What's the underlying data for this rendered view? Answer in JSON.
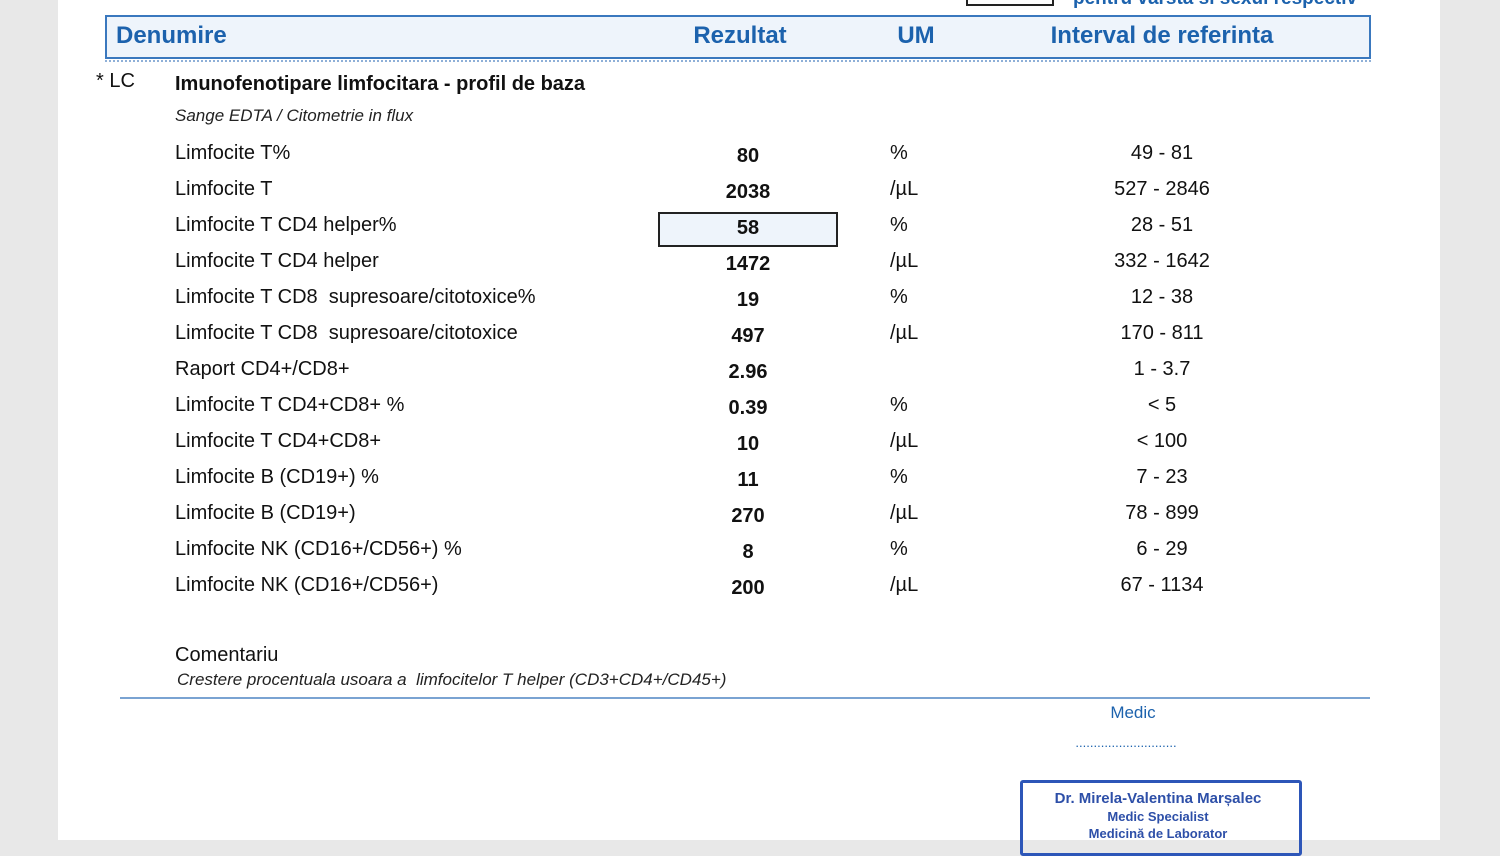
{
  "header": {
    "note": "pentru varsta si sexul respectiv",
    "columns": [
      "Denumire",
      "Rezultat",
      "UM",
      "Interval de referinta"
    ]
  },
  "section": {
    "code": "* LC",
    "title": "Imunofenotipare limfocitara - profil de baza",
    "method": "Sange EDTA / Citometrie in flux"
  },
  "table": {
    "rows": [
      [
        "Limfocite T%",
        "80",
        "%",
        "49 - 81"
      ],
      [
        "Limfocite T",
        "2038",
        "/µL",
        "527 - 2846"
      ],
      [
        "Limfocite T CD4 helper%",
        "58",
        "%",
        "28 - 51"
      ],
      [
        "Limfocite T CD4 helper",
        "1472",
        "/µL",
        "332 - 1642"
      ],
      [
        "Limfocite T CD8  supresoare/citotoxice%",
        "19",
        "%",
        "12 - 38"
      ],
      [
        "Limfocite T CD8  supresoare/citotoxice",
        "497",
        "/µL",
        "170 - 811"
      ],
      [
        "Raport CD4+/CD8+",
        "2.96",
        "",
        "1 - 3.7"
      ],
      [
        "Limfocite T CD4+CD8+ %",
        "0.39",
        "%",
        "< 5"
      ],
      [
        "Limfocite T CD4+CD8+",
        "10",
        "/µL",
        "< 100"
      ],
      [
        "Limfocite B (CD19+) %",
        "11",
        "%",
        "7 - 23"
      ],
      [
        "Limfocite B (CD19+)",
        "270",
        "/µL",
        "78 - 899"
      ],
      [
        "Limfocite NK (CD16+/CD56+) %",
        "8",
        "%",
        "6 - 29"
      ],
      [
        "Limfocite NK (CD16+/CD56+)",
        "200",
        "/µL",
        "67 - 1134"
      ]
    ]
  },
  "comment": {
    "label": "Comentariu",
    "text": "Crestere procentuala usoara a  limfocitelor T helper (CD3+CD4+/CD45+)"
  },
  "signature": {
    "label": "Medic",
    "dots": "............................",
    "stamp": [
      "Dr. Mirela-Valentina Marșalec",
      "Medic Specialist",
      "Medicină de Laborator"
    ]
  }
}
